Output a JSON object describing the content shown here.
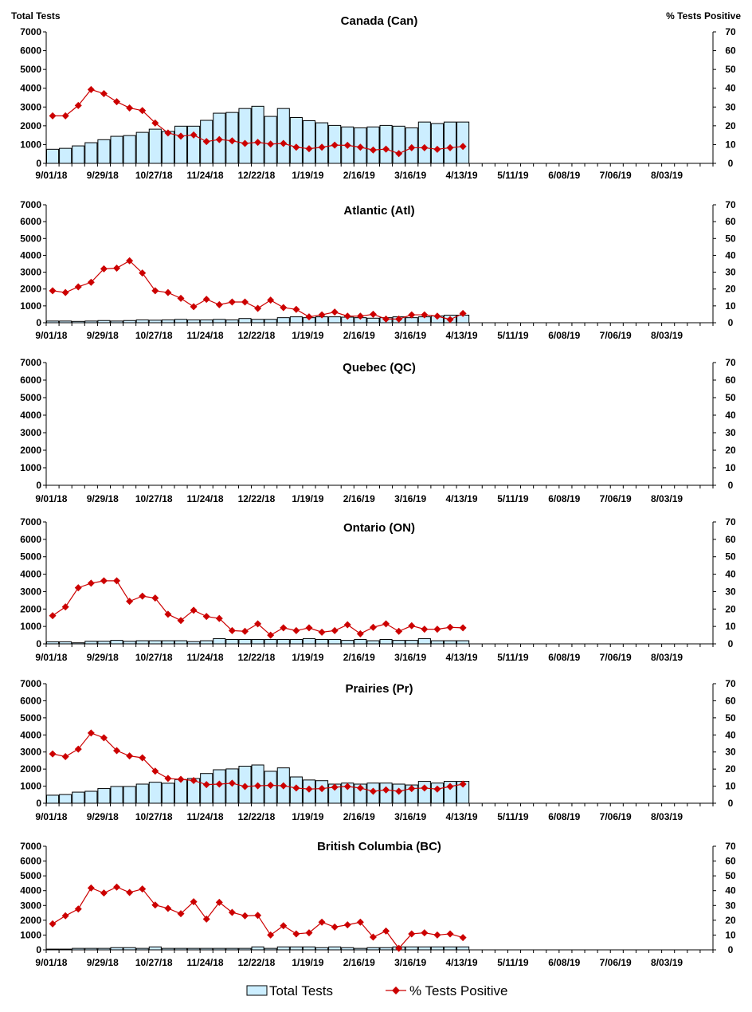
{
  "axis_titles": {
    "left": "Total Tests",
    "right": "% Tests Positive"
  },
  "legend": {
    "bars": "Total Tests",
    "line": "% Tests Positive"
  },
  "colors": {
    "bar_fill": "#cceeff",
    "bar_stroke": "#000000",
    "line": "#cc0000"
  },
  "chart_data": [
    {
      "type": "bar+line",
      "title": "Canada (Can)",
      "x_tick_labels": [
        "9/01/18",
        "9/29/18",
        "10/27/18",
        "11/24/18",
        "12/22/18",
        "1/19/19",
        "2/16/19",
        "3/16/19",
        "4/13/19",
        "5/11/19",
        "6/08/19",
        "7/06/19",
        "8/03/19"
      ],
      "y_left": {
        "range": [
          0,
          7000
        ],
        "ticks": [
          0,
          1000,
          2000,
          3000,
          4000,
          5000,
          6000,
          7000
        ]
      },
      "y_right": {
        "range": [
          0,
          70
        ],
        "ticks": [
          0,
          10,
          20,
          30,
          40,
          50,
          60,
          70
        ]
      },
      "total_tests": [
        750,
        800,
        930,
        1100,
        1260,
        1440,
        1480,
        1650,
        1820,
        1700,
        1980,
        1980,
        2290,
        2670,
        2710,
        2920,
        3040,
        2500,
        2920,
        2440,
        2270,
        2160,
        2020,
        1940,
        1890,
        1940,
        2020,
        1980,
        1890,
        2200,
        2120,
        2200,
        2200
      ],
      "pct_positive": [
        25.3,
        25.3,
        30.8,
        39.3,
        37.1,
        32.8,
        29.5,
        28.1,
        21.5,
        16.2,
        14.5,
        15.1,
        11.6,
        12.7,
        12.0,
        10.6,
        11.2,
        10.3,
        10.6,
        8.6,
        7.8,
        8.6,
        9.7,
        9.6,
        8.6,
        7.1,
        7.6,
        5.2,
        8.3,
        8.3,
        7.5,
        8.3,
        9.0
      ]
    },
    {
      "type": "bar+line",
      "title": "Atlantic (Atl)",
      "x_tick_labels": [
        "9/01/18",
        "9/29/18",
        "10/27/18",
        "11/24/18",
        "12/22/18",
        "1/19/19",
        "2/16/19",
        "3/16/19",
        "4/13/19",
        "5/11/19",
        "6/08/19",
        "7/06/19",
        "8/03/19"
      ],
      "y_left": {
        "range": [
          0,
          7000
        ],
        "ticks": [
          0,
          1000,
          2000,
          3000,
          4000,
          5000,
          6000,
          7000
        ]
      },
      "y_right": {
        "range": [
          0,
          70
        ],
        "ticks": [
          0,
          10,
          20,
          30,
          40,
          50,
          60,
          70
        ]
      },
      "total_tests": [
        100,
        100,
        80,
        100,
        130,
        100,
        130,
        170,
        150,
        170,
        200,
        170,
        170,
        200,
        170,
        250,
        200,
        200,
        300,
        350,
        300,
        350,
        350,
        330,
        300,
        270,
        300,
        350,
        300,
        350,
        400,
        450,
        450
      ],
      "pct_positive": [
        19.0,
        17.9,
        21.3,
        24.0,
        32.0,
        32.4,
        36.8,
        29.5,
        19.0,
        17.9,
        14.5,
        9.5,
        13.9,
        10.7,
        12.3,
        12.3,
        8.5,
        13.4,
        9.0,
        7.9,
        3.5,
        4.7,
        6.3,
        3.9,
        3.9,
        5.0,
        2.2,
        2.2,
        4.7,
        4.7,
        3.9,
        1.9,
        5.5
      ]
    },
    {
      "type": "bar+line",
      "title": "Quebec (QC)",
      "x_tick_labels": [
        "9/01/18",
        "9/29/18",
        "10/27/18",
        "11/24/18",
        "12/22/18",
        "1/19/19",
        "2/16/19",
        "3/16/19",
        "4/13/19",
        "5/11/19",
        "6/08/19",
        "7/06/19",
        "8/03/19"
      ],
      "y_left": {
        "range": [
          0,
          7000
        ],
        "ticks": [
          0,
          1000,
          2000,
          3000,
          4000,
          5000,
          6000,
          7000
        ]
      },
      "y_right": {
        "range": [
          0,
          70
        ],
        "ticks": [
          0,
          10,
          20,
          30,
          40,
          50,
          60,
          70
        ]
      },
      "total_tests": [],
      "pct_positive": []
    },
    {
      "type": "bar+line",
      "title": "Ontario (ON)",
      "x_tick_labels": [
        "9/01/18",
        "9/29/18",
        "10/27/18",
        "11/24/18",
        "12/22/18",
        "1/19/19",
        "2/16/19",
        "3/16/19",
        "4/13/19",
        "5/11/19",
        "6/08/19",
        "7/06/19",
        "8/03/19"
      ],
      "y_left": {
        "range": [
          0,
          7000
        ],
        "ticks": [
          0,
          1000,
          2000,
          3000,
          4000,
          5000,
          6000,
          7000
        ]
      },
      "y_right": {
        "range": [
          0,
          70
        ],
        "ticks": [
          0,
          10,
          20,
          30,
          40,
          50,
          60,
          70
        ]
      },
      "total_tests": [
        120,
        120,
        60,
        150,
        150,
        200,
        150,
        180,
        180,
        180,
        180,
        130,
        180,
        300,
        250,
        250,
        250,
        250,
        250,
        250,
        300,
        250,
        250,
        200,
        250,
        180,
        250,
        200,
        200,
        300,
        180,
        180,
        180
      ],
      "pct_positive": [
        16.2,
        21.2,
        32.2,
        34.8,
        36.2,
        36.2,
        24.4,
        27.4,
        26.3,
        17.0,
        13.4,
        19.3,
        15.7,
        14.6,
        7.6,
        7.2,
        11.5,
        5.0,
        9.2,
        7.6,
        9.2,
        6.7,
        7.6,
        11.0,
        5.8,
        9.5,
        11.5,
        7.2,
        10.4,
        8.4,
        8.4,
        9.5,
        9.2
      ]
    },
    {
      "type": "bar+line",
      "title": "Prairies (Pr)",
      "x_tick_labels": [
        "9/01/18",
        "9/29/18",
        "10/27/18",
        "11/24/18",
        "12/22/18",
        "1/19/19",
        "2/16/19",
        "3/16/19",
        "4/13/19",
        "5/11/19",
        "6/08/19",
        "7/06/19",
        "8/03/19"
      ],
      "y_left": {
        "range": [
          0,
          7000
        ],
        "ticks": [
          0,
          1000,
          2000,
          3000,
          4000,
          5000,
          6000,
          7000
        ]
      },
      "y_right": {
        "range": [
          0,
          70
        ],
        "ticks": [
          0,
          10,
          20,
          30,
          40,
          50,
          60,
          70
        ]
      },
      "total_tests": [
        470,
        510,
        650,
        700,
        860,
        980,
        980,
        1120,
        1230,
        1170,
        1390,
        1450,
        1740,
        1960,
        2010,
        2170,
        2240,
        1870,
        2070,
        1540,
        1360,
        1320,
        1120,
        1180,
        1120,
        1180,
        1180,
        1120,
        1070,
        1280,
        1180,
        1280,
        1280
      ],
      "pct_positive": [
        28.9,
        27.3,
        31.7,
        41.1,
        38.3,
        30.8,
        27.7,
        26.6,
        18.8,
        14.5,
        14.0,
        13.3,
        10.9,
        11.2,
        11.7,
        9.8,
        10.2,
        10.5,
        10.2,
        8.9,
        8.3,
        8.6,
        9.4,
        9.8,
        8.9,
        7.0,
        7.8,
        7.0,
        8.6,
        8.9,
        8.3,
        9.8,
        11.2
      ]
    },
    {
      "type": "bar+line",
      "title": "British Columbia (BC)",
      "x_tick_labels": [
        "9/01/18",
        "9/29/18",
        "10/27/18",
        "11/24/18",
        "12/22/18",
        "1/19/19",
        "2/16/19",
        "3/16/19",
        "4/13/19",
        "5/11/19",
        "6/08/19",
        "7/06/19",
        "8/03/19"
      ],
      "y_left": {
        "range": [
          0,
          7000
        ],
        "ticks": [
          0,
          1000,
          2000,
          3000,
          4000,
          5000,
          6000,
          7000
        ]
      },
      "y_right": {
        "range": [
          0,
          70
        ],
        "ticks": [
          0,
          10,
          20,
          30,
          40,
          50,
          60,
          70
        ]
      },
      "total_tests": [
        50,
        50,
        100,
        100,
        100,
        150,
        150,
        100,
        200,
        100,
        100,
        100,
        100,
        100,
        100,
        100,
        200,
        100,
        200,
        200,
        200,
        150,
        200,
        150,
        100,
        150,
        150,
        200,
        200,
        200,
        200,
        200,
        200
      ],
      "pct_positive": [
        17.6,
        23.0,
        27.6,
        41.8,
        38.4,
        42.4,
        38.8,
        41.1,
        30.3,
        28.0,
        24.4,
        32.5,
        20.8,
        32.1,
        25.3,
        23.0,
        23.3,
        10.0,
        16.3,
        10.8,
        11.5,
        18.7,
        15.4,
        16.9,
        18.7,
        8.6,
        12.7,
        1.0,
        10.8,
        11.5,
        10.0,
        10.8,
        8.3
      ]
    }
  ]
}
